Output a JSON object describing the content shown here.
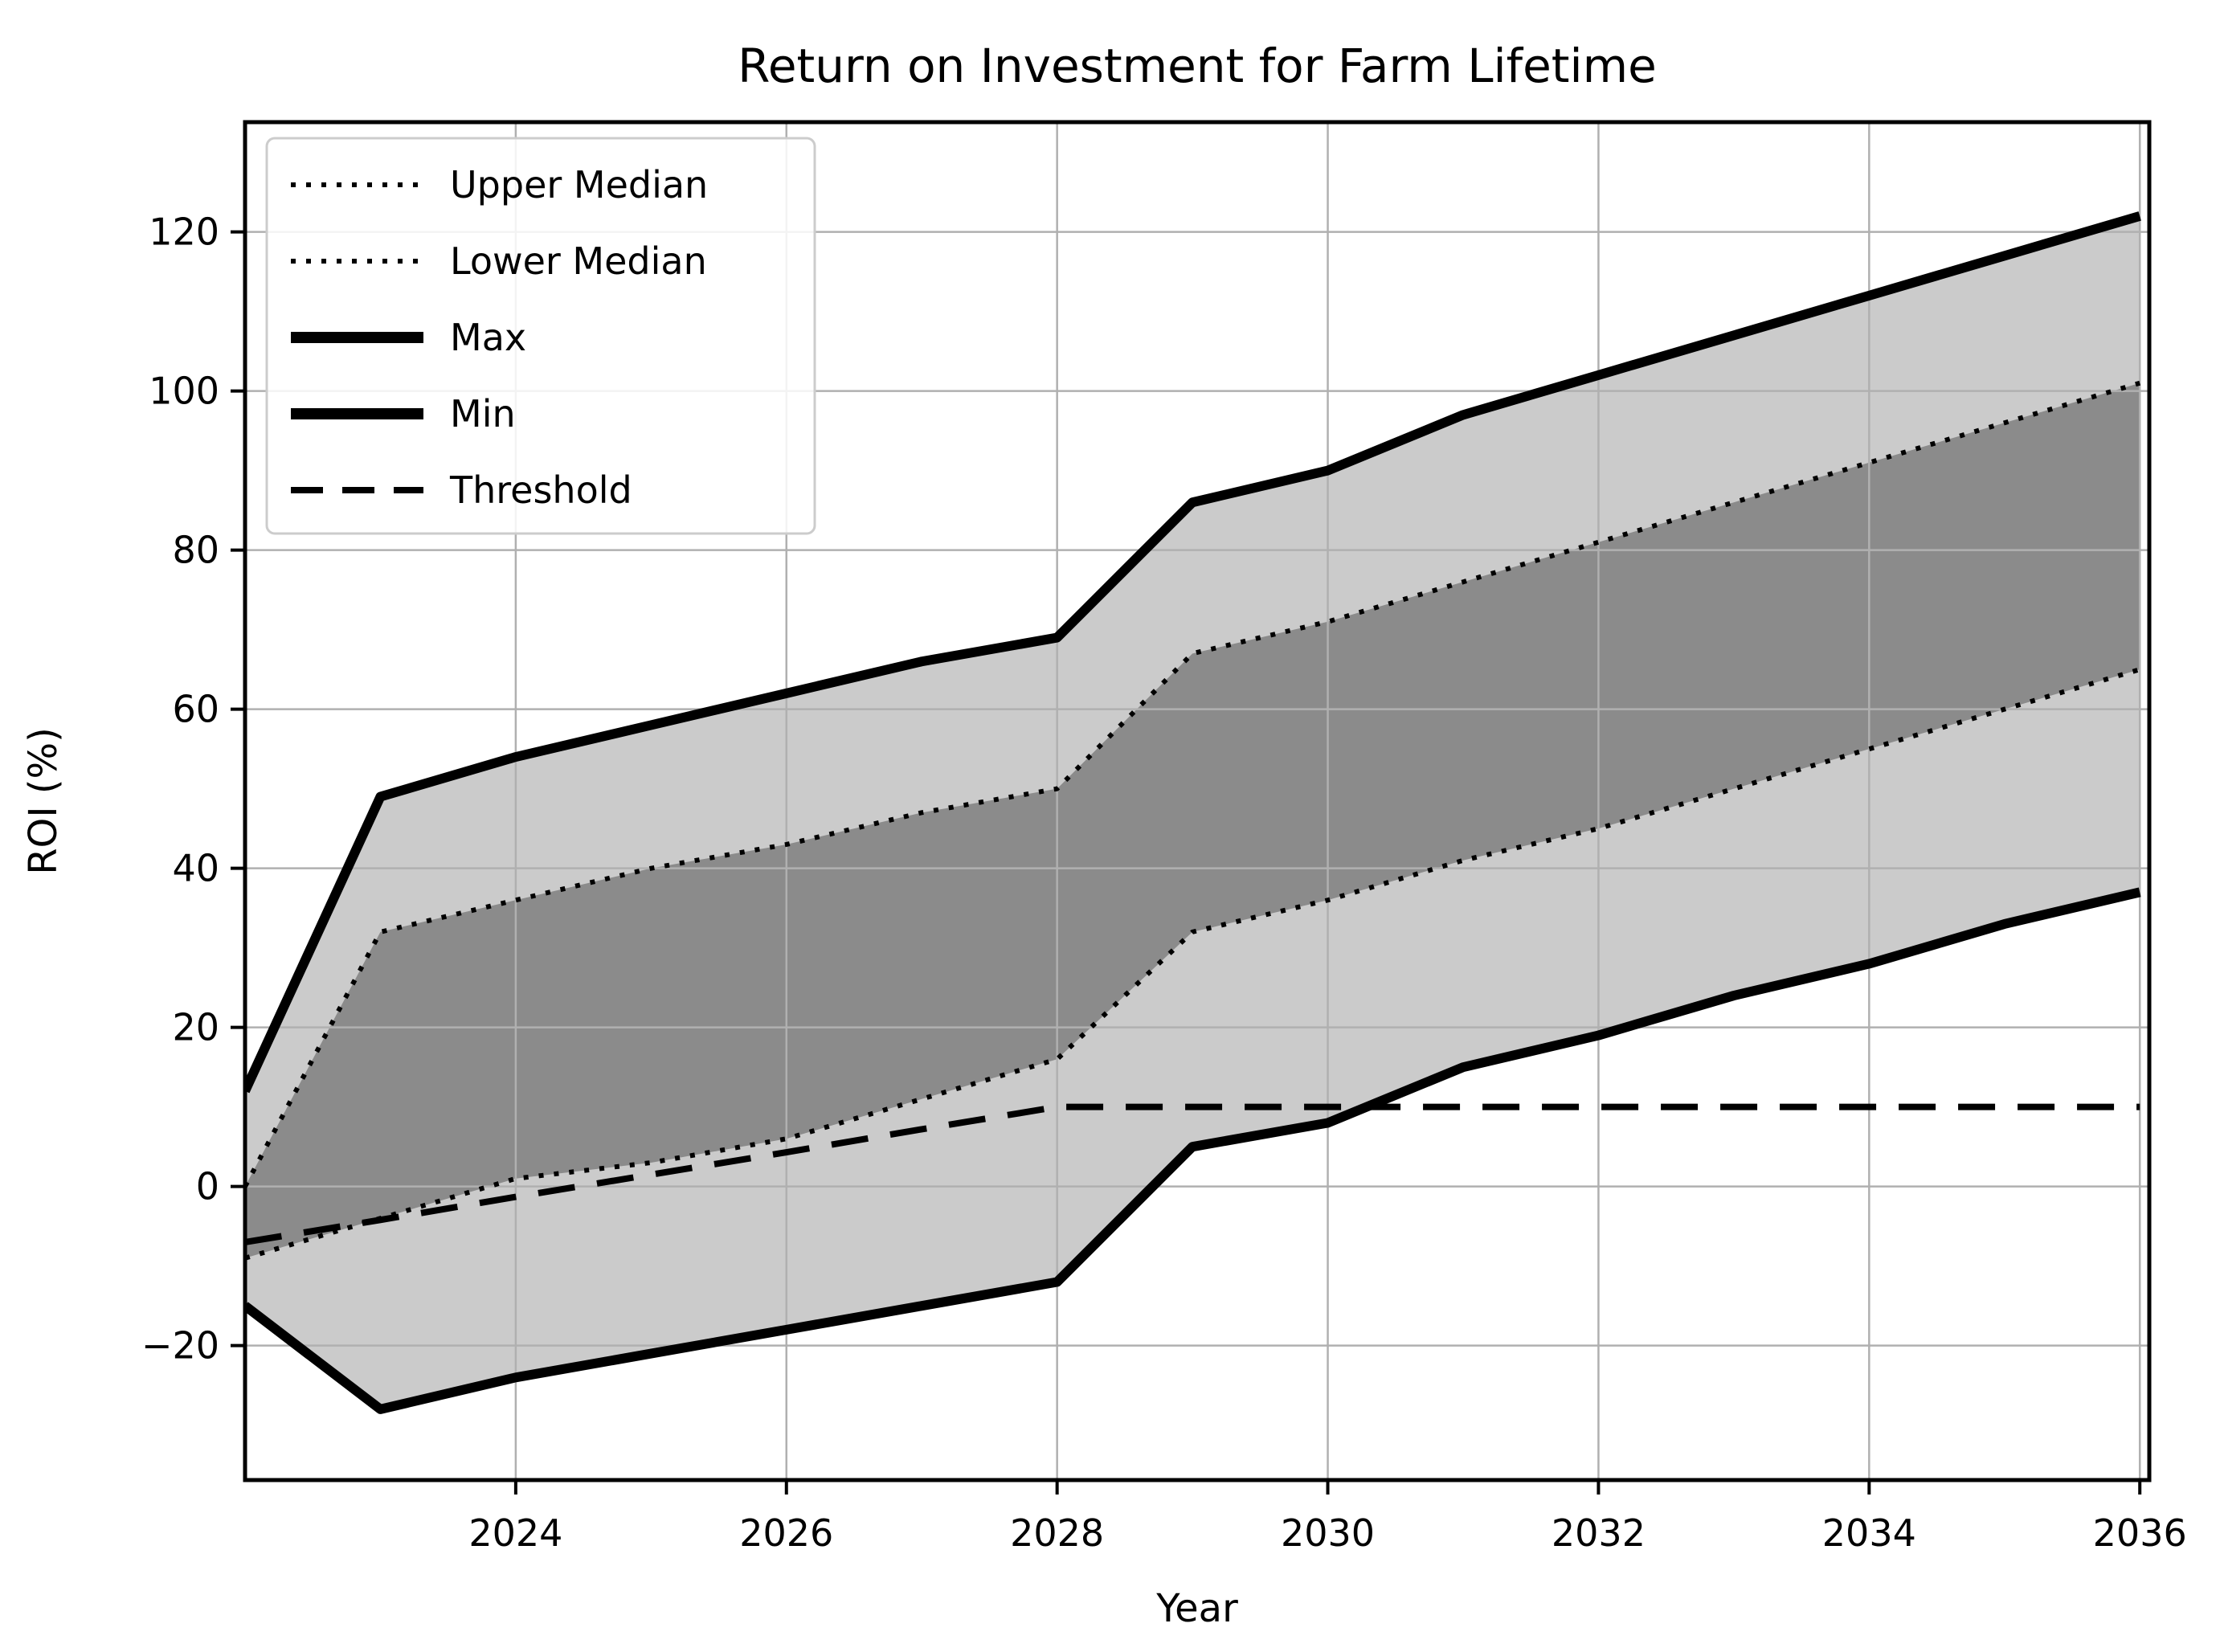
{
  "figure": {
    "title": "Return on Investment for Farm Lifetime",
    "xlabel": "Year",
    "ylabel": "ROI (%)"
  },
  "colors": {
    "outer_band_fill": "#cbcbcb",
    "inner_band_fill": "#8b8b8b",
    "gridline": "#b0b0b0",
    "line": "#000000",
    "legend_border": "#cccccc",
    "legend_background": "#ffffff"
  },
  "legend": {
    "position": "upper left",
    "entries": [
      {
        "label": "Upper Median",
        "style": "dotted"
      },
      {
        "label": "Lower Median",
        "style": "dotted"
      },
      {
        "label": "Max",
        "style": "solid"
      },
      {
        "label": "Min",
        "style": "solid"
      },
      {
        "label": "Threshold",
        "style": "dashed"
      }
    ]
  },
  "chart_data": {
    "type": "line",
    "title": "Return on Investment for Farm Lifetime",
    "xlabel": "Year",
    "ylabel": "ROI (%)",
    "grid": true,
    "legend_position": "upper left",
    "x": [
      2022,
      2023,
      2024,
      2025,
      2026,
      2027,
      2028,
      2029,
      2030,
      2031,
      2032,
      2033,
      2034,
      2035,
      2036
    ],
    "series": [
      {
        "name": "Max",
        "style": "solid",
        "width": 12,
        "color": "#000000",
        "values": [
          12,
          49,
          54,
          58,
          62,
          66,
          69,
          86,
          90,
          97,
          102,
          107,
          112,
          117,
          122
        ]
      },
      {
        "name": "Upper Median",
        "style": "dotted",
        "width": 6,
        "color": "#000000",
        "values": [
          0,
          32,
          36,
          40,
          43,
          47,
          50,
          67,
          71,
          76,
          81,
          86,
          91,
          96,
          101
        ]
      },
      {
        "name": "Lower Median",
        "style": "dotted",
        "width": 6,
        "color": "#000000",
        "values": [
          -9,
          -4,
          1,
          3,
          6,
          11,
          16,
          32,
          36,
          41,
          45,
          50,
          55,
          60,
          65
        ]
      },
      {
        "name": "Min",
        "style": "solid",
        "width": 12,
        "color": "#000000",
        "values": [
          -15,
          -28,
          -24,
          -21,
          -18,
          -15,
          -12,
          5,
          8,
          15,
          19,
          24,
          28,
          33,
          37
        ]
      },
      {
        "name": "Threshold",
        "style": "dashed",
        "width": 8,
        "color": "#000000",
        "values": [
          -7,
          -4.2,
          -1.3,
          1.5,
          4.3,
          7.2,
          10,
          10,
          10,
          10,
          10,
          10,
          10,
          10,
          10
        ]
      }
    ],
    "bands": [
      {
        "upper": "Max",
        "lower": "Min",
        "fill": "#cbcbcb",
        "label": "min-max range"
      },
      {
        "upper": "Upper Median",
        "lower": "Lower Median",
        "fill": "#8b8b8b",
        "label": "median range"
      }
    ],
    "xlim": [
      2022,
      2036.07
    ],
    "ylim": [
      -36.9,
      133.8
    ],
    "xticks": [
      {
        "v": 2024,
        "label": "2024"
      },
      {
        "v": 2026,
        "label": "2026"
      },
      {
        "v": 2028,
        "label": "2028"
      },
      {
        "v": 2030,
        "label": "2030"
      },
      {
        "v": 2032,
        "label": "2032"
      },
      {
        "v": 2034,
        "label": "2034"
      },
      {
        "v": 2036,
        "label": "2036"
      }
    ],
    "yticks": [
      {
        "v": -20,
        "label": "−20"
      },
      {
        "v": 0,
        "label": "0"
      },
      {
        "v": 20,
        "label": "20"
      },
      {
        "v": 40,
        "label": "40"
      },
      {
        "v": 60,
        "label": "60"
      },
      {
        "v": 80,
        "label": "80"
      },
      {
        "v": 100,
        "label": "100"
      },
      {
        "v": 120,
        "label": "120"
      }
    ]
  }
}
